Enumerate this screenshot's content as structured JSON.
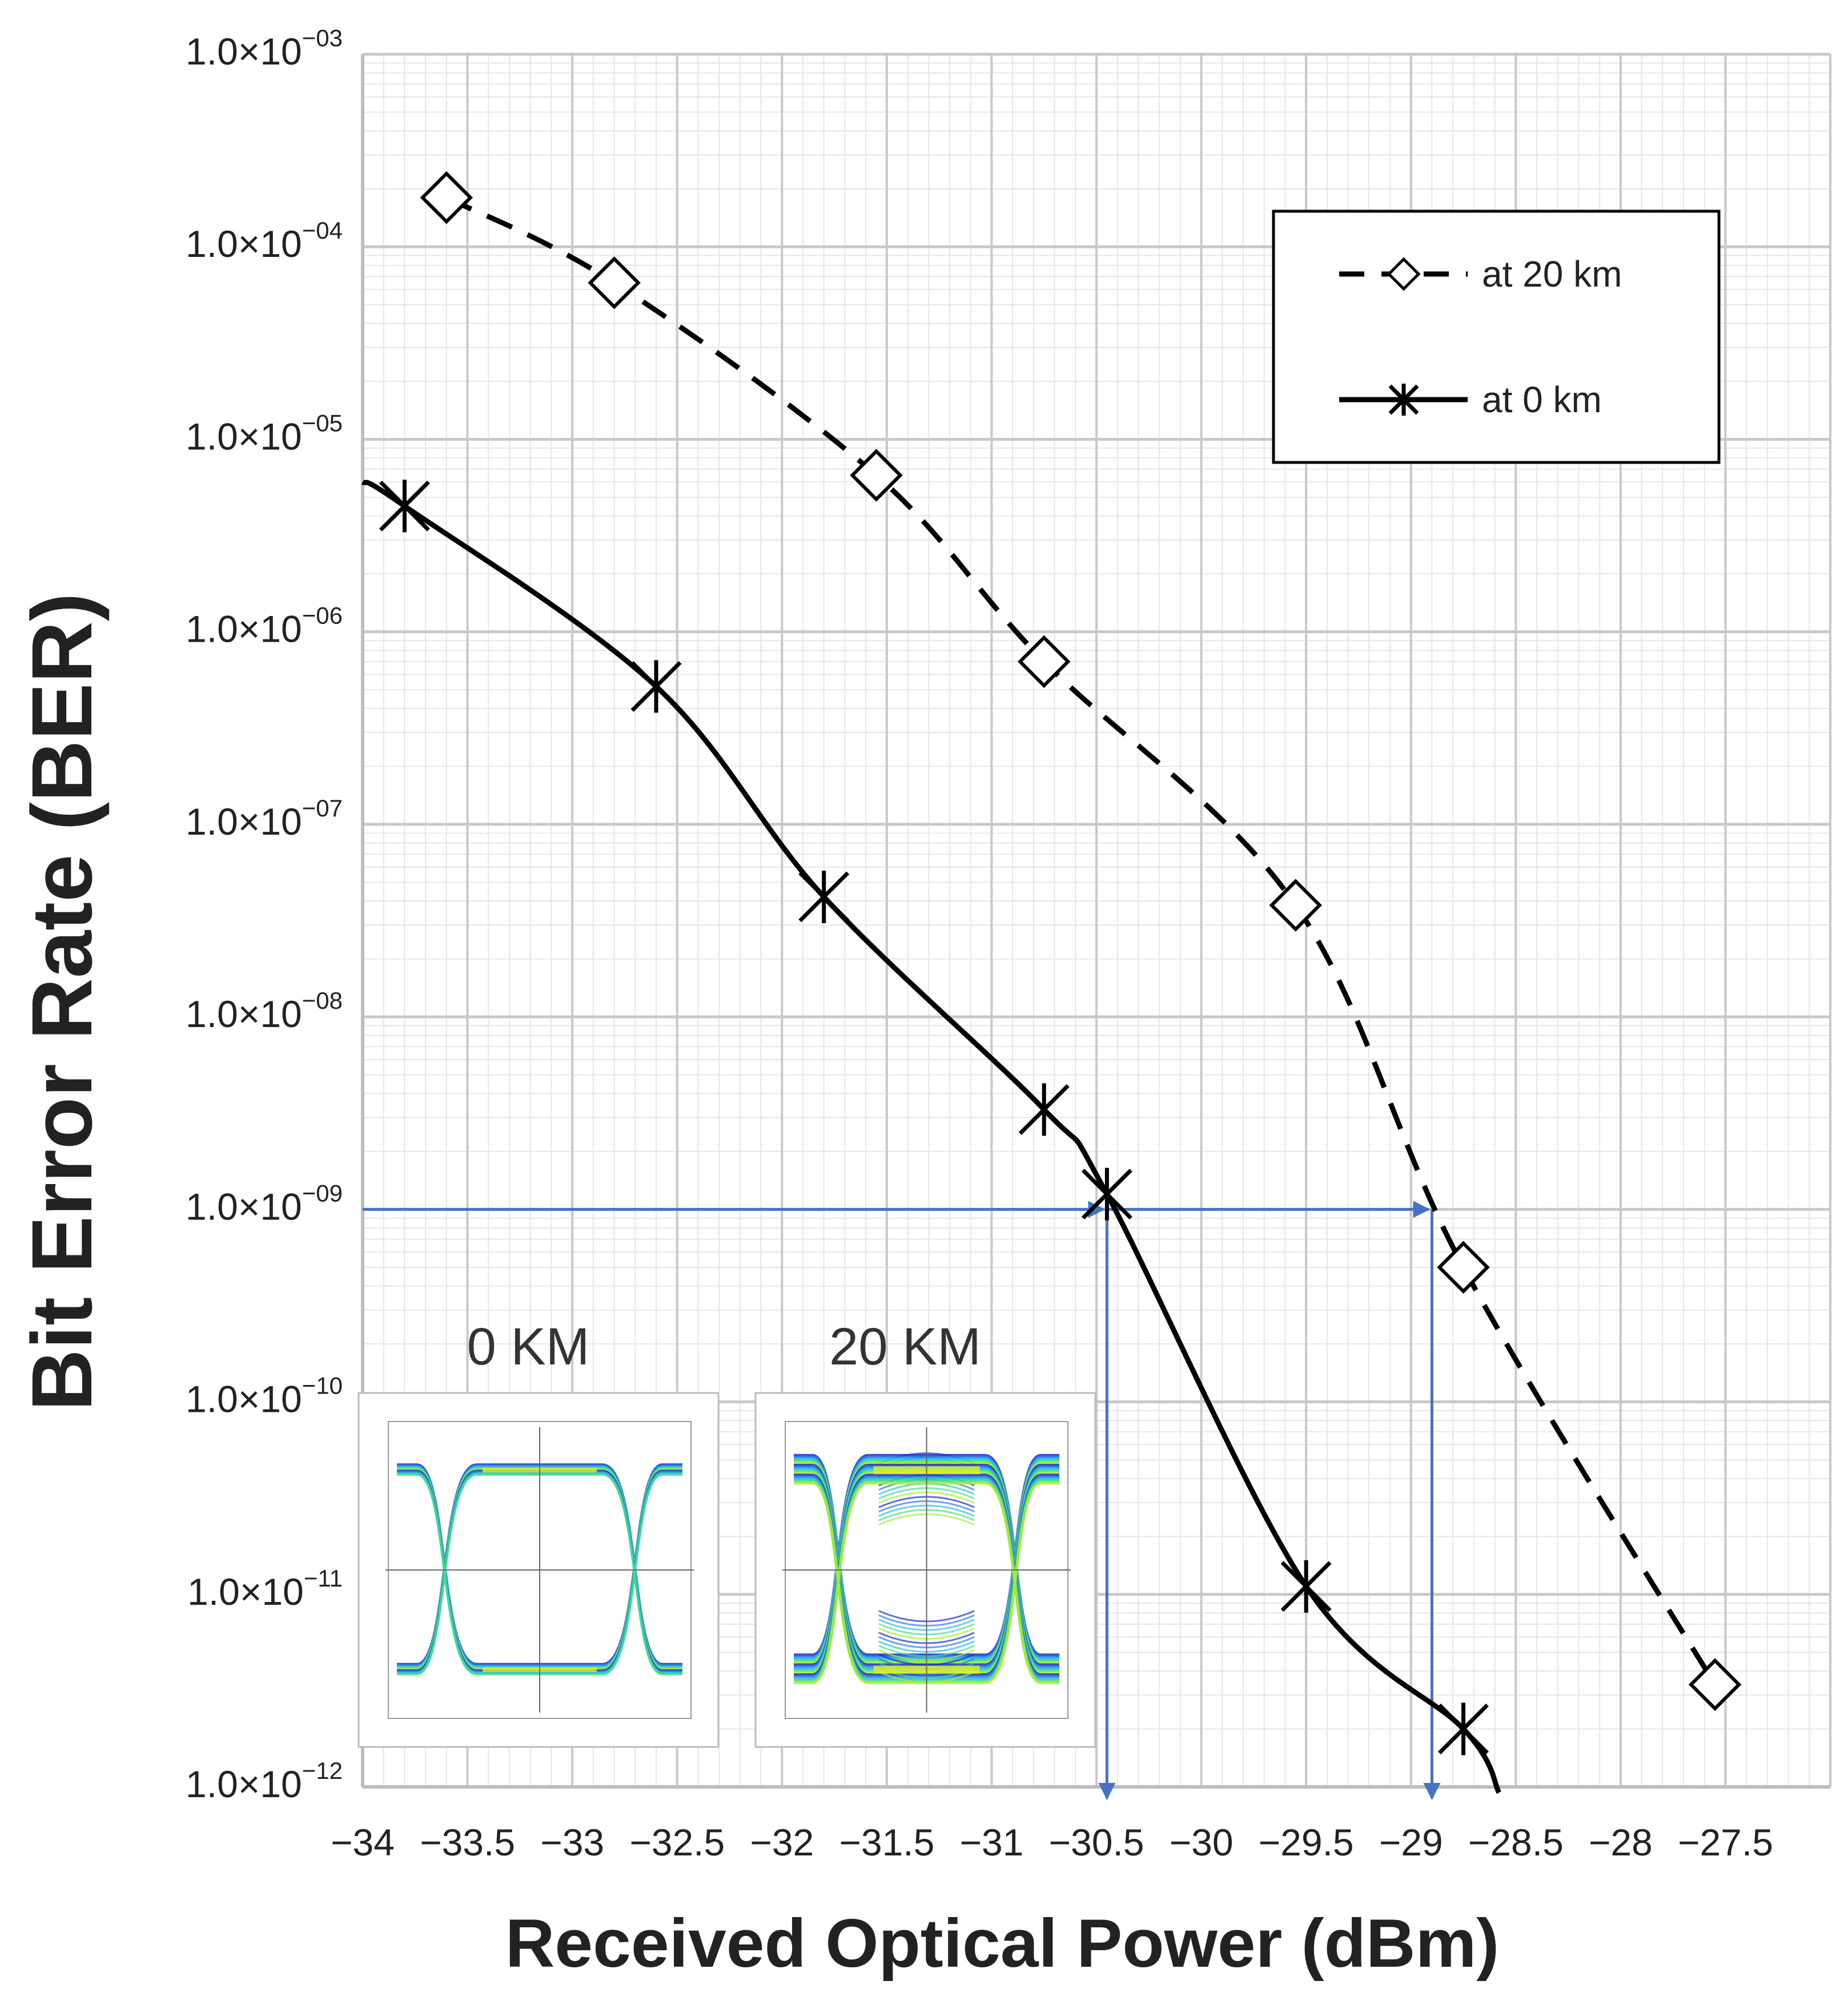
{
  "chart_data": {
    "type": "line",
    "xlabel": "Received Optical Power (dBm)",
    "ylabel": "Bit Error Rate (BER)",
    "xlim": [
      -34,
      -27
    ],
    "ylim": [
      1e-12,
      0.001
    ],
    "y_scale": "log",
    "grid": true,
    "legend_position": "top-right",
    "x_ticks": [
      -34,
      -33.5,
      -33,
      -32.5,
      -32,
      -31.5,
      -31,
      -30.5,
      -30,
      -29.5,
      -29,
      -28.5,
      -28,
      -27.5
    ],
    "x_tick_labels": [
      "−34",
      "−33.5",
      "−33",
      "−32.5",
      "−32",
      "−31.5",
      "−31",
      "−30.5",
      "−30",
      "−29.5",
      "−29",
      "−28.5",
      "−28",
      "−27.5"
    ],
    "y_tick_mantissa": "1.0×10",
    "y_tick_exponents": [
      "−03",
      "−04",
      "−05",
      "−06",
      "−07",
      "−08",
      "−09",
      "−10",
      "−11",
      "−12"
    ],
    "series": [
      {
        "name": "at 20 km",
        "style": "dashed",
        "marker": "diamond",
        "color": "#000000",
        "x": [
          -33.6,
          -32.8,
          -31.55,
          -30.75,
          -29.55,
          -28.75,
          -27.55
        ],
        "y": [
          0.00018,
          6.5e-05,
          6.5e-06,
          7e-07,
          3.8e-08,
          5e-10,
          3.4e-12
        ]
      },
      {
        "name": "at 0 km",
        "style": "solid",
        "marker": "star",
        "color": "#000000",
        "x": [
          -33.8,
          -32.6,
          -31.8,
          -30.75,
          -30.45,
          -29.5,
          -28.75
        ],
        "y": [
          4.5e-06,
          5.2e-07,
          4.2e-08,
          3.3e-09,
          1.2e-09,
          1.1e-11,
          2e-12
        ]
      }
    ],
    "threshold": {
      "ber": 1e-09,
      "x_0km": -30.45,
      "x_20km": -28.9,
      "color": "#4472c4"
    },
    "insets": [
      {
        "label": "0 KM",
        "eye": "open"
      },
      {
        "label": "20 KM",
        "eye": "closed"
      }
    ]
  }
}
